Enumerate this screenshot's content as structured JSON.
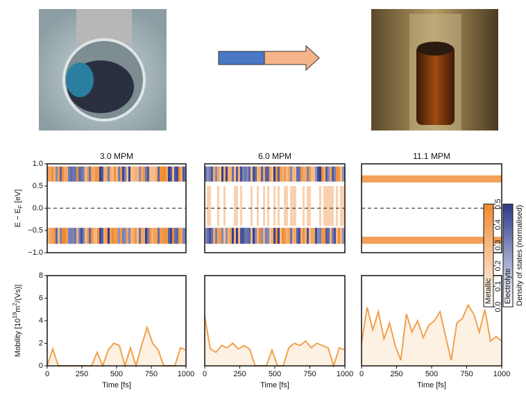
{
  "chart_data": [
    {
      "type": "heatmap",
      "title": "3.0 MPM",
      "ylim": [
        -1,
        1
      ],
      "yticks": [
        {
          "value": -1,
          "label": "−1.0"
        },
        {
          "value": -0.5,
          "label": "−0.5"
        },
        {
          "value": 0,
          "label": "0.0"
        },
        0.5,
        {
          "value": 1,
          "label": "1.0"
        }
      ],
      "ylabel_parts": [
        "E − E",
        "F",
        " [eV]"
      ]
    },
    {
      "type": "heatmap",
      "title": "6.0 MPM",
      "ylim": [
        -1,
        1
      ]
    },
    {
      "type": "heatmap",
      "title": "11.1 MPM",
      "ylim": [
        -1,
        1
      ]
    },
    {
      "type": "line",
      "color": "#f0a04b",
      "xlim": [
        0,
        1000
      ],
      "xticks": [
        0,
        250,
        500,
        750,
        1000
      ],
      "xlabel": "Time [fs]",
      "ylim": [
        0,
        8
      ],
      "yticks": [
        0,
        2,
        4,
        6,
        8
      ],
      "ylabel_parts": [
        "Mobility [10",
        "19",
        "m",
        "2",
        "/(Vs)]"
      ],
      "x": [
        0,
        40,
        80,
        120,
        160,
        200,
        240,
        280,
        320,
        360,
        400,
        440,
        480,
        520,
        560,
        600,
        640,
        680,
        720,
        760,
        800,
        840,
        880,
        920,
        960,
        1000
      ],
      "values": [
        0,
        1.5,
        0,
        0,
        0,
        0,
        0,
        0,
        0,
        1.2,
        0,
        1.4,
        2.0,
        1.8,
        0,
        1.6,
        0,
        1.8,
        3.4,
        2.0,
        1.4,
        0,
        0,
        0,
        1.6,
        1.4
      ]
    },
    {
      "type": "line",
      "color": "#f0a04b",
      "xlim": [
        0,
        1000
      ],
      "xticks": [
        0,
        250,
        500,
        750,
        1000
      ],
      "xlabel": "Time [fs]",
      "ylim": [
        0,
        8
      ],
      "x": [
        0,
        40,
        80,
        120,
        160,
        200,
        240,
        280,
        320,
        360,
        400,
        440,
        480,
        520,
        560,
        600,
        640,
        680,
        720,
        760,
        800,
        840,
        880,
        920,
        960,
        1000
      ],
      "values": [
        4.4,
        1.5,
        1.2,
        1.8,
        1.6,
        2.0,
        1.5,
        1.8,
        1.5,
        0,
        0,
        0,
        1.4,
        0,
        0,
        1.6,
        2.0,
        1.8,
        2.2,
        1.6,
        2.0,
        1.8,
        1.6,
        0,
        1.6,
        1.4
      ]
    },
    {
      "type": "line",
      "color": "#f0a04b",
      "xlim": [
        0,
        1000
      ],
      "xticks": [
        0,
        250,
        500,
        750,
        1000
      ],
      "xlabel": "Time [fs]",
      "ylim": [
        0,
        8
      ],
      "x": [
        0,
        40,
        80,
        120,
        160,
        200,
        240,
        280,
        320,
        360,
        400,
        440,
        480,
        520,
        560,
        600,
        640,
        680,
        720,
        760,
        800,
        840,
        880,
        920,
        960,
        1000
      ],
      "values": [
        2.0,
        5.2,
        3.2,
        4.8,
        2.4,
        3.8,
        1.8,
        0.5,
        4.6,
        3.0,
        4.0,
        2.5,
        3.6,
        4.0,
        4.8,
        2.6,
        0.5,
        3.8,
        4.2,
        5.4,
        4.6,
        3.0,
        5.0,
        2.2,
        2.6,
        2.2
      ]
    },
    {
      "type": "colorbar",
      "ylim": [
        0,
        0.5
      ],
      "yticks": [
        {
          "value": 0,
          "label": "0.0"
        },
        0.1,
        0.2,
        0.3,
        0.4,
        0.5
      ],
      "labels": [
        "Metallic",
        "Electrolyte"
      ],
      "colors": [
        "#f0892e",
        "#2b3a8a"
      ],
      "title": "Density of states (normalised)"
    }
  ]
}
